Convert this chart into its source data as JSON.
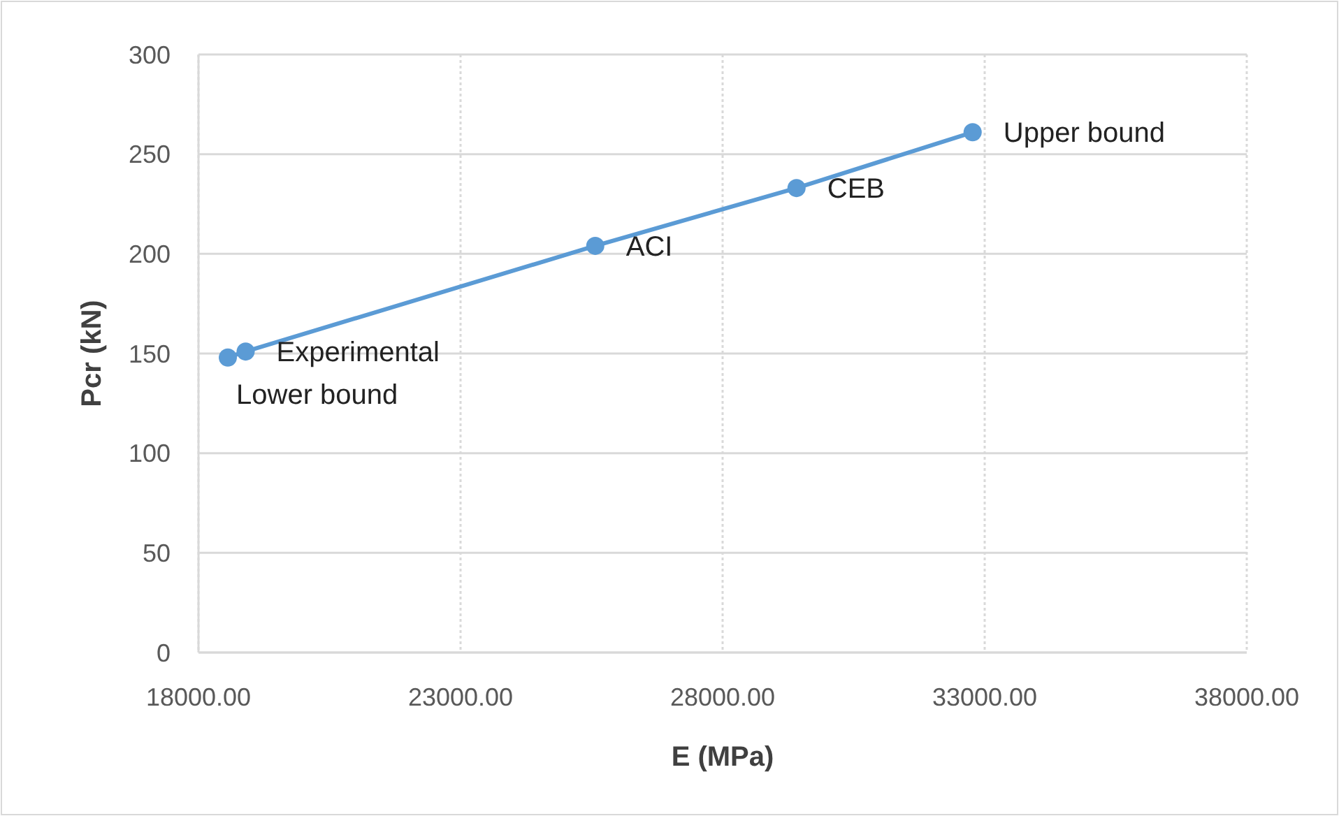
{
  "chart_data": {
    "type": "line",
    "xlabel": "E (MPa)",
    "ylabel": "Pcr (kN)",
    "x": [
      18560,
      18900,
      25570,
      29410,
      32770
    ],
    "series": [
      {
        "color": "#5b9bd5",
        "values": [
          148,
          151,
          204,
          233,
          261
        ]
      }
    ],
    "xlim": [
      18000,
      38000
    ],
    "xticks": [
      {
        "value": 18000,
        "label": "18000.00"
      },
      {
        "value": 23000,
        "label": "23000.00"
      },
      {
        "value": 28000,
        "label": "28000.00"
      },
      {
        "value": 33000,
        "label": "33000.00"
      },
      {
        "value": 38000,
        "label": "38000.00"
      }
    ],
    "ylim": [
      0,
      300
    ],
    "yticks": [
      0,
      50,
      100,
      150,
      200,
      250,
      300
    ],
    "grid": true,
    "marker": "circle",
    "line_style": "solid",
    "annotations": [
      {
        "text": "Lower bound",
        "x": 18560,
        "y": 148
      },
      {
        "text": "Experimental",
        "x": 18900,
        "y": 151
      },
      {
        "text": "ACI",
        "x": 25570,
        "y": 204
      },
      {
        "text": "CEB",
        "x": 29410,
        "y": 233
      },
      {
        "text": "Upper bound",
        "x": 32770,
        "y": 261
      }
    ]
  }
}
